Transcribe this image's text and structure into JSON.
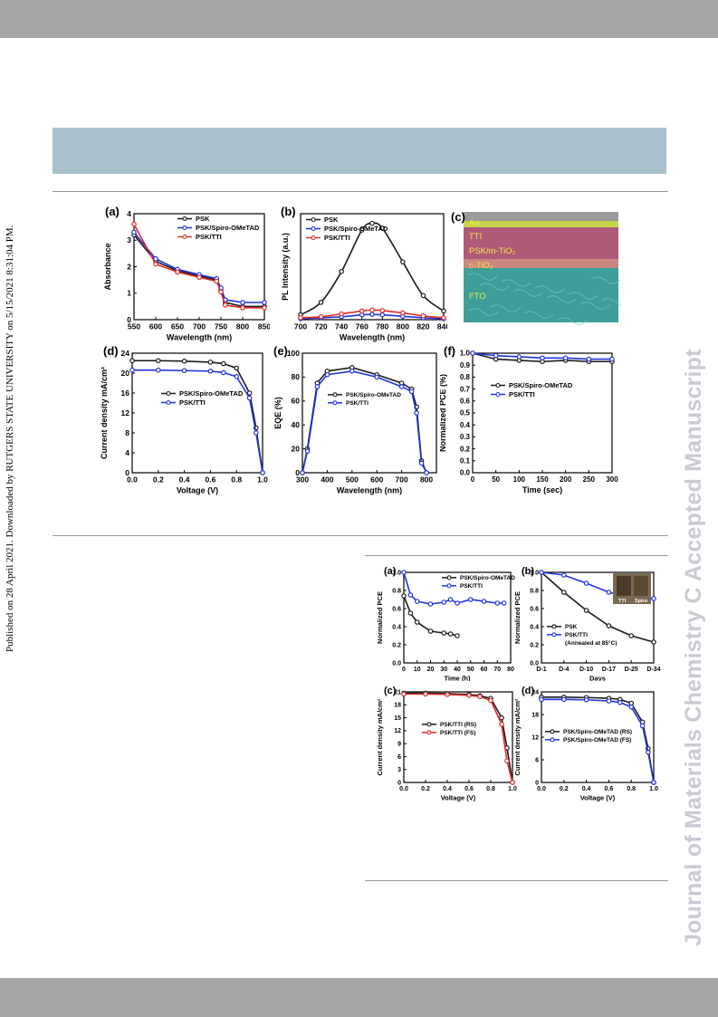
{
  "side_note": "Published on 28 April 2021. Downloaded by RUTGERS STATE UNIVERSITY on 5/15/2021 8:31:04 PM.",
  "watermark": "Journal of Materials Chemistry C Accepted Manuscript",
  "colors": {
    "black": "#1a1a1a",
    "blue": "#2233dd",
    "red": "#e02a2a"
  },
  "fig1": {
    "a": {
      "label": "(a)",
      "xlabel": "Wavelength (nm)",
      "ylabel": "Absorbance",
      "legend": [
        "PSK",
        "PSK/Spiro-OMeTAD",
        "PSK/TTI"
      ],
      "xticks": [
        "550",
        "600",
        "650",
        "700",
        "750",
        "800",
        "850"
      ],
      "yticks": [
        "0",
        "1",
        "2",
        "3",
        "4"
      ]
    },
    "b": {
      "label": "(b)",
      "xlabel": "Wavelength (nm)",
      "ylabel": "PL Intensity (a.u.)",
      "legend": [
        "PSK",
        "PSK/Spiro-OMeTAD",
        "PSK/TTI"
      ],
      "xticks": [
        "700",
        "720",
        "740",
        "760",
        "780",
        "800",
        "820",
        "840"
      ]
    },
    "c": {
      "label": "(c)",
      "layers": [
        "Au",
        "TTI",
        "PSK/m-TiO₂",
        "c-TiO₂",
        "FTO"
      ]
    },
    "d": {
      "label": "(d)",
      "xlabel": "Voltage (V)",
      "ylabel": "Current density mA/cm²",
      "legend": [
        "PSK/Spiro-OMeTAD",
        "PSK/TTI"
      ],
      "xticks": [
        "0.0",
        "0.2",
        "0.4",
        "0.6",
        "0.8",
        "1.0"
      ],
      "yticks": [
        "0",
        "4",
        "8",
        "12",
        "16",
        "20",
        "24"
      ]
    },
    "e": {
      "label": "(e)",
      "xlabel": "Wavelength (nm)",
      "ylabel": "EQE (%)",
      "legend": [
        "PSK/Spiro-OMeTAD",
        "PSK/TTI"
      ],
      "xticks": [
        "300",
        "400",
        "500",
        "600",
        "700",
        "800"
      ],
      "yticks": [
        "0",
        "20",
        "40",
        "60",
        "80",
        "100"
      ]
    },
    "f": {
      "label": "(f)",
      "xlabel": "Time (sec)",
      "ylabel": "Normalized PCE (%)",
      "legend": [
        "PSK/Spiro-OMeTAD",
        "PSK/TTI"
      ],
      "xticks": [
        "0",
        "50",
        "100",
        "150",
        "200",
        "250",
        "300"
      ],
      "yticks": [
        "0.0",
        "0.1",
        "0.2",
        "0.3",
        "0.4",
        "0.5",
        "0.6",
        "0.7",
        "0.8",
        "0.9",
        "1.0"
      ]
    }
  },
  "fig2": {
    "a": {
      "label": "(a)",
      "xlabel": "Time (h)",
      "ylabel": "Normalized PCE",
      "legend": [
        "PSK/Spiro-OMeTAD",
        "PSK/TTI"
      ],
      "xticks": [
        "0",
        "10",
        "20",
        "30",
        "40",
        "50",
        "60",
        "70",
        "80"
      ],
      "yticks": [
        "0.0",
        "0.2",
        "0.4",
        "0.6",
        "0.8",
        "1.0"
      ]
    },
    "b": {
      "label": "(b)",
      "xlabel": "Days",
      "ylabel": "Normalized PCE",
      "legend": [
        "PSK",
        "PSK/TTI",
        "(Annealed at 85°C)"
      ],
      "inset": [
        "TTI",
        "Spiro"
      ],
      "xticks": [
        "D-1",
        "D-4",
        "D-10",
        "D-17",
        "D-25",
        "D-34"
      ],
      "yticks": [
        "0.0",
        "0.2",
        "0.4",
        "0.6",
        "0.8",
        "1.0"
      ]
    },
    "c": {
      "label": "(c)",
      "xlabel": "Voltage (V)",
      "ylabel": "Current density mA/cm²",
      "legend": [
        "PSK/TTI (RS)",
        "PSK/TTI (FS)"
      ],
      "xticks": [
        "0.0",
        "0.2",
        "0.4",
        "0.6",
        "0.8",
        "1.0"
      ],
      "yticks": [
        "0",
        "3",
        "6",
        "9",
        "12",
        "15",
        "18",
        "21"
      ]
    },
    "d": {
      "label": "(d)",
      "xlabel": "Voltage (V)",
      "ylabel": "Current density mA/cm²",
      "legend": [
        "PSK/Spiro-OMeTAD (RS)",
        "PSK/Spiro-OMeTAD (FS)"
      ],
      "xticks": [
        "0.0",
        "0.2",
        "0.4",
        "0.6",
        "0.8",
        "1.0"
      ],
      "yticks": [
        "0",
        "6",
        "12",
        "18",
        "24"
      ]
    }
  },
  "chart_data": [
    {
      "panel": "1a",
      "type": "line",
      "x": [
        550,
        600,
        650,
        700,
        740,
        750,
        760,
        800,
        850
      ],
      "series": [
        {
          "name": "PSK",
          "values": [
            3.2,
            2.2,
            1.85,
            1.65,
            1.5,
            1.1,
            0.65,
            0.5,
            0.5
          ]
        },
        {
          "name": "PSK/Spiro-OMeTAD",
          "values": [
            3.3,
            2.3,
            1.9,
            1.7,
            1.55,
            1.2,
            0.75,
            0.65,
            0.65
          ]
        },
        {
          "name": "PSK/TTI",
          "values": [
            3.6,
            2.1,
            1.8,
            1.6,
            1.45,
            1.05,
            0.55,
            0.45,
            0.45
          ]
        }
      ],
      "ylim": [
        0,
        4
      ],
      "xlim": [
        550,
        850
      ]
    },
    {
      "panel": "1b",
      "type": "line",
      "x": [
        700,
        720,
        740,
        760,
        770,
        780,
        800,
        820,
        840
      ],
      "series": [
        {
          "name": "PSK",
          "values": [
            0.05,
            0.18,
            0.5,
            0.93,
            1.0,
            0.95,
            0.6,
            0.25,
            0.09
          ]
        },
        {
          "name": "PSK/Spiro-OMeTAD",
          "values": [
            0.01,
            0.02,
            0.03,
            0.05,
            0.055,
            0.05,
            0.035,
            0.02,
            0.01
          ]
        },
        {
          "name": "PSK/TTI",
          "values": [
            0.02,
            0.03,
            0.06,
            0.09,
            0.1,
            0.095,
            0.07,
            0.04,
            0.02
          ]
        }
      ],
      "ylim": [
        0,
        1.1
      ],
      "xlim": [
        700,
        840
      ]
    },
    {
      "panel": "1d",
      "type": "line",
      "x": [
        0,
        0.2,
        0.4,
        0.6,
        0.7,
        0.8,
        0.9,
        0.95,
        1.0
      ],
      "series": [
        {
          "name": "PSK/Spiro-OMeTAD",
          "values": [
            22.5,
            22.5,
            22.4,
            22.2,
            21.9,
            21,
            16,
            9,
            0
          ]
        },
        {
          "name": "PSK/TTI",
          "values": [
            20.6,
            20.6,
            20.5,
            20.4,
            20.1,
            19.3,
            15,
            8,
            0
          ]
        }
      ],
      "ylim": [
        0,
        24
      ],
      "xlim": [
        0,
        1.0
      ]
    },
    {
      "panel": "1e",
      "type": "line",
      "x": [
        300,
        320,
        360,
        400,
        500,
        600,
        700,
        740,
        760,
        780,
        800
      ],
      "series": [
        {
          "name": "PSK/Spiro-OMeTAD",
          "values": [
            0,
            20,
            75,
            85,
            88,
            82,
            75,
            70,
            55,
            10,
            0
          ]
        },
        {
          "name": "PSK/TTI",
          "values": [
            0,
            18,
            72,
            82,
            85,
            80,
            72,
            68,
            50,
            8,
            0
          ]
        }
      ],
      "ylim": [
        0,
        100
      ],
      "xlim": [
        300,
        840
      ]
    },
    {
      "panel": "1f",
      "type": "line",
      "x": [
        0,
        50,
        100,
        150,
        200,
        250,
        300
      ],
      "series": [
        {
          "name": "PSK/Spiro-OMeTAD",
          "values": [
            1.0,
            0.95,
            0.94,
            0.93,
            0.94,
            0.93,
            0.93
          ]
        },
        {
          "name": "PSK/TTI",
          "values": [
            1.0,
            0.98,
            0.97,
            0.96,
            0.96,
            0.95,
            0.95
          ]
        }
      ],
      "ylim": [
        0,
        1.0
      ],
      "xlim": [
        0,
        300
      ]
    },
    {
      "panel": "2a",
      "type": "line",
      "x": [
        0,
        5,
        10,
        20,
        30,
        35,
        40,
        50,
        60,
        70,
        75
      ],
      "series": [
        {
          "name": "PSK/Spiro-OMeTAD",
          "values": [
            0.74,
            0.55,
            0.45,
            0.35,
            0.33,
            0.32,
            0.3,
            null,
            null,
            null,
            null
          ]
        },
        {
          "name": "PSK/TTI",
          "values": [
            1.0,
            0.75,
            0.68,
            0.65,
            0.67,
            0.7,
            0.66,
            0.7,
            0.68,
            0.66,
            0.66
          ]
        }
      ],
      "ylim": [
        0,
        1.0
      ],
      "xlim": [
        0,
        80
      ]
    },
    {
      "panel": "2b",
      "type": "line",
      "categories": [
        "D-1",
        "D-4",
        "D-10",
        "D-17",
        "D-25",
        "D-34"
      ],
      "series": [
        {
          "name": "PSK",
          "values": [
            1.0,
            0.78,
            0.58,
            0.41,
            0.3,
            0.23
          ]
        },
        {
          "name": "PSK/TTI",
          "values": [
            1.0,
            0.97,
            0.88,
            0.78,
            0.71,
            0.71
          ]
        }
      ],
      "ylim": [
        0,
        1.0
      ]
    },
    {
      "panel": "2c",
      "type": "line",
      "x": [
        0,
        0.2,
        0.4,
        0.6,
        0.7,
        0.8,
        0.9,
        0.95,
        1.0
      ],
      "series": [
        {
          "name": "PSK/TTI (RS)",
          "values": [
            20.7,
            20.7,
            20.6,
            20.4,
            20.1,
            19.5,
            15,
            8,
            0
          ]
        },
        {
          "name": "PSK/TTI (FS)",
          "values": [
            20.5,
            20.5,
            20.4,
            20.2,
            19.9,
            19,
            13.5,
            5,
            0
          ]
        }
      ],
      "ylim": [
        0,
        21
      ],
      "xlim": [
        0,
        1.0
      ]
    },
    {
      "panel": "2d",
      "type": "line",
      "x": [
        0,
        0.2,
        0.4,
        0.6,
        0.7,
        0.8,
        0.9,
        0.95,
        1.0
      ],
      "series": [
        {
          "name": "PSK/Spiro-OMeTAD (RS)",
          "values": [
            22.6,
            22.6,
            22.5,
            22.3,
            22,
            21,
            16,
            9,
            0
          ]
        },
        {
          "name": "PSK/Spiro-OMeTAD (FS)",
          "values": [
            22.0,
            22.0,
            21.9,
            21.6,
            21.2,
            20,
            15,
            8,
            0
          ]
        }
      ],
      "ylim": [
        0,
        24
      ],
      "xlim": [
        0,
        1.0
      ]
    }
  ]
}
